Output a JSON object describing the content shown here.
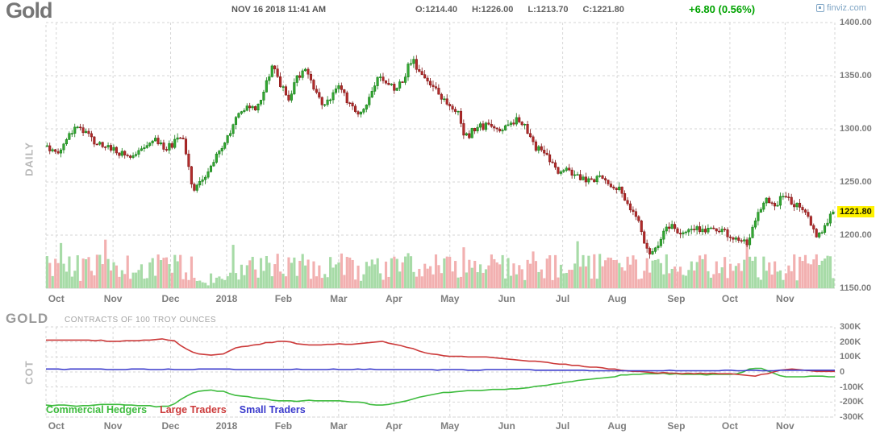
{
  "header": {
    "title": "Gold",
    "datetime": "NOV 16 2018 11:41 AM",
    "ohlc": [
      "O:1214.40",
      "H:1226.00",
      "L:1213.70",
      "C:1221.80"
    ],
    "change": "+6.80 (0.56%)",
    "brand": "finviz.com"
  },
  "main_chart": {
    "panel_label": "DAILY",
    "price_ticks": [
      "1400.00",
      "1350.00",
      "1300.00",
      "1250.00",
      "1200.00",
      "1150.00"
    ],
    "current_price_label": "1221.80",
    "months": [
      "Oct",
      "Nov",
      "Dec",
      "2018",
      "Feb",
      "Mar",
      "Apr",
      "May",
      "Jun",
      "Jul",
      "Aug",
      "Sep",
      "Oct",
      "Nov"
    ],
    "month_fracs": [
      0.013,
      0.085,
      0.158,
      0.229,
      0.301,
      0.371,
      0.441,
      0.512,
      0.584,
      0.655,
      0.724,
      0.799,
      0.867,
      0.937
    ]
  },
  "cot_panel": {
    "symbol": "GOLD",
    "subtitle": "CONTRACTS OF 100 TROY OUNCES",
    "panel_label": "COT",
    "ticks": [
      "300K",
      "200K",
      "100K",
      "0",
      "-100K",
      "-200K",
      "-300K"
    ],
    "legend": [
      "Commercial Hedgers",
      "Large Traders",
      "Small Traders"
    ]
  },
  "chart_data": [
    {
      "type": "candlestick",
      "title": "Gold daily OHLC with volume",
      "x_tick_labels": [
        "Oct",
        "Nov",
        "Dec",
        "2018",
        "Feb",
        "Mar",
        "Apr",
        "May",
        "Jun",
        "Jul",
        "Aug",
        "Sep",
        "Oct",
        "Nov"
      ],
      "y_ticks": [
        1400,
        1350,
        1300,
        1250,
        1200,
        1150
      ],
      "ylim": [
        1150,
        1400
      ],
      "today": {
        "open": 1214.4,
        "high": 1226.0,
        "low": 1213.7,
        "close": 1221.8,
        "change": 6.8,
        "change_pct": "0.56%"
      },
      "price_path_anchors": [
        [
          0.0,
          1284
        ],
        [
          0.012,
          1277
        ],
        [
          0.028,
          1292
        ],
        [
          0.04,
          1305
        ],
        [
          0.055,
          1291
        ],
        [
          0.072,
          1284
        ],
        [
          0.09,
          1278
        ],
        [
          0.105,
          1271
        ],
        [
          0.122,
          1281
        ],
        [
          0.14,
          1289
        ],
        [
          0.152,
          1281
        ],
        [
          0.163,
          1287
        ],
        [
          0.172,
          1293
        ],
        [
          0.18,
          1262
        ],
        [
          0.187,
          1240
        ],
        [
          0.198,
          1254
        ],
        [
          0.212,
          1270
        ],
        [
          0.228,
          1292
        ],
        [
          0.243,
          1312
        ],
        [
          0.255,
          1322
        ],
        [
          0.266,
          1316
        ],
        [
          0.276,
          1338
        ],
        [
          0.287,
          1360
        ],
        [
          0.296,
          1344
        ],
        [
          0.307,
          1325
        ],
        [
          0.317,
          1347
        ],
        [
          0.327,
          1357
        ],
        [
          0.338,
          1342
        ],
        [
          0.35,
          1320
        ],
        [
          0.362,
          1330
        ],
        [
          0.372,
          1340
        ],
        [
          0.383,
          1324
        ],
        [
          0.395,
          1313
        ],
        [
          0.407,
          1320
        ],
        [
          0.42,
          1350
        ],
        [
          0.432,
          1344
        ],
        [
          0.443,
          1336
        ],
        [
          0.455,
          1350
        ],
        [
          0.464,
          1367
        ],
        [
          0.475,
          1352
        ],
        [
          0.487,
          1340
        ],
        [
          0.5,
          1332
        ],
        [
          0.512,
          1320
        ],
        [
          0.524,
          1313
        ],
        [
          0.532,
          1291
        ],
        [
          0.543,
          1299
        ],
        [
          0.557,
          1303
        ],
        [
          0.57,
          1299
        ],
        [
          0.583,
          1303
        ],
        [
          0.597,
          1308
        ],
        [
          0.61,
          1300
        ],
        [
          0.622,
          1283
        ],
        [
          0.637,
          1272
        ],
        [
          0.65,
          1258
        ],
        [
          0.663,
          1261
        ],
        [
          0.676,
          1256
        ],
        [
          0.69,
          1251
        ],
        [
          0.703,
          1253
        ],
        [
          0.716,
          1247
        ],
        [
          0.728,
          1243
        ],
        [
          0.74,
          1230
        ],
        [
          0.752,
          1212
        ],
        [
          0.762,
          1186
        ],
        [
          0.772,
          1183
        ],
        [
          0.782,
          1200
        ],
        [
          0.792,
          1210
        ],
        [
          0.802,
          1200
        ],
        [
          0.814,
          1205
        ],
        [
          0.826,
          1208
        ],
        [
          0.838,
          1202
        ],
        [
          0.85,
          1208
        ],
        [
          0.862,
          1202
        ],
        [
          0.872,
          1200
        ],
        [
          0.882,
          1194
        ],
        [
          0.892,
          1193
        ],
        [
          0.9,
          1210
        ],
        [
          0.906,
          1226
        ],
        [
          0.916,
          1232
        ],
        [
          0.926,
          1229
        ],
        [
          0.936,
          1236
        ],
        [
          0.946,
          1233
        ],
        [
          0.956,
          1226
        ],
        [
          0.966,
          1218
        ],
        [
          0.976,
          1203
        ],
        [
          0.984,
          1199
        ],
        [
          0.992,
          1212
        ],
        [
          1.0,
          1221.8
        ]
      ],
      "volume_dip_zone": [
        0.185,
        0.23
      ]
    },
    {
      "type": "line",
      "title": "Commitments of Traders — contracts of 100 troy ounces",
      "y_ticks_thousands": [
        300,
        200,
        100,
        0,
        -100,
        -200,
        -300
      ],
      "ylim_thousands": [
        -300,
        300
      ],
      "series": [
        {
          "name": "Commercial Hedgers",
          "color": "#3dbb3d",
          "anchors_thousands": [
            [
              0.0,
              -218
            ],
            [
              0.04,
              -226
            ],
            [
              0.08,
              -214
            ],
            [
              0.12,
              -222
            ],
            [
              0.148,
              -232
            ],
            [
              0.163,
              -216
            ],
            [
              0.175,
              -165
            ],
            [
              0.19,
              -126
            ],
            [
              0.21,
              -120
            ],
            [
              0.225,
              -130
            ],
            [
              0.24,
              -156
            ],
            [
              0.26,
              -172
            ],
            [
              0.29,
              -188
            ],
            [
              0.32,
              -192
            ],
            [
              0.33,
              -188
            ],
            [
              0.37,
              -194
            ],
            [
              0.4,
              -200
            ],
            [
              0.42,
              -224
            ],
            [
              0.44,
              -210
            ],
            [
              0.46,
              -186
            ],
            [
              0.48,
              -160
            ],
            [
              0.51,
              -132
            ],
            [
              0.545,
              -126
            ],
            [
              0.575,
              -118
            ],
            [
              0.6,
              -110
            ],
            [
              0.625,
              -96
            ],
            [
              0.65,
              -78
            ],
            [
              0.675,
              -58
            ],
            [
              0.7,
              -42
            ],
            [
              0.725,
              -26
            ],
            [
              0.75,
              -14
            ],
            [
              0.775,
              -12
            ],
            [
              0.8,
              -15
            ],
            [
              0.83,
              -18
            ],
            [
              0.86,
              -16
            ],
            [
              0.878,
              -10
            ],
            [
              0.895,
              24
            ],
            [
              0.91,
              20
            ],
            [
              0.925,
              -18
            ],
            [
              0.94,
              -36
            ],
            [
              0.96,
              -30
            ],
            [
              1.0,
              -32
            ]
          ]
        },
        {
          "name": "Large Traders",
          "color": "#cc3a3a",
          "anchors_thousands": [
            [
              0.0,
              212
            ],
            [
              0.04,
              213
            ],
            [
              0.08,
              206
            ],
            [
              0.12,
              209
            ],
            [
              0.148,
              221
            ],
            [
              0.163,
              210
            ],
            [
              0.175,
              160
            ],
            [
              0.19,
              118
            ],
            [
              0.21,
              112
            ],
            [
              0.225,
              122
            ],
            [
              0.24,
              160
            ],
            [
              0.26,
              180
            ],
            [
              0.29,
              200
            ],
            [
              0.3,
              205
            ],
            [
              0.33,
              178
            ],
            [
              0.37,
              186
            ],
            [
              0.4,
              190
            ],
            [
              0.425,
              202
            ],
            [
              0.45,
              175
            ],
            [
              0.47,
              148
            ],
            [
              0.49,
              118
            ],
            [
              0.51,
              104
            ],
            [
              0.545,
              100
            ],
            [
              0.575,
              92
            ],
            [
              0.6,
              82
            ],
            [
              0.625,
              68
            ],
            [
              0.65,
              55
            ],
            [
              0.675,
              42
            ],
            [
              0.7,
              30
            ],
            [
              0.725,
              15
            ],
            [
              0.75,
              3
            ],
            [
              0.775,
              -5
            ],
            [
              0.8,
              -8
            ],
            [
              0.83,
              -9
            ],
            [
              0.86,
              -11
            ],
            [
              0.878,
              -15
            ],
            [
              0.895,
              -30
            ],
            [
              0.912,
              -14
            ],
            [
              0.932,
              16
            ],
            [
              0.95,
              19
            ],
            [
              0.966,
              4
            ],
            [
              1.0,
              4
            ]
          ]
        },
        {
          "name": "Small Traders",
          "color": "#3a3acc",
          "anchors_thousands": [
            [
              0.0,
              18
            ],
            [
              0.05,
              21
            ],
            [
              0.09,
              16
            ],
            [
              0.13,
              19
            ],
            [
              0.17,
              16
            ],
            [
              0.21,
              19
            ],
            [
              0.25,
              16
            ],
            [
              0.3,
              18
            ],
            [
              0.35,
              16
            ],
            [
              0.4,
              19
            ],
            [
              0.45,
              16
            ],
            [
              0.5,
              15
            ],
            [
              0.55,
              13
            ],
            [
              0.6,
              15
            ],
            [
              0.63,
              12
            ],
            [
              0.67,
              11
            ],
            [
              0.7,
              9
            ],
            [
              0.74,
              8
            ],
            [
              0.78,
              9
            ],
            [
              0.82,
              8
            ],
            [
              0.86,
              9
            ],
            [
              0.89,
              11
            ],
            [
              0.92,
              9
            ],
            [
              0.945,
              13
            ],
            [
              0.965,
              11
            ],
            [
              1.0,
              12
            ]
          ]
        }
      ],
      "legend_position": "bottom-left"
    }
  ],
  "colors": {
    "candle_up_fill": "#33a733",
    "candle_up_stroke": "#0f7a0f",
    "candle_down_fill": "#b32b2b",
    "candle_down_stroke": "#7e1414",
    "volume_up": "#a7dba7",
    "volume_down": "#f2b0b0",
    "grid": "#d6d6d6",
    "axis_text": "#7e7e7e",
    "price_tag_bg": "#fff200",
    "price_tag_text": "#1b1b00",
    "change_green": "#00a300",
    "brand_blue": "#7fa5c5"
  }
}
